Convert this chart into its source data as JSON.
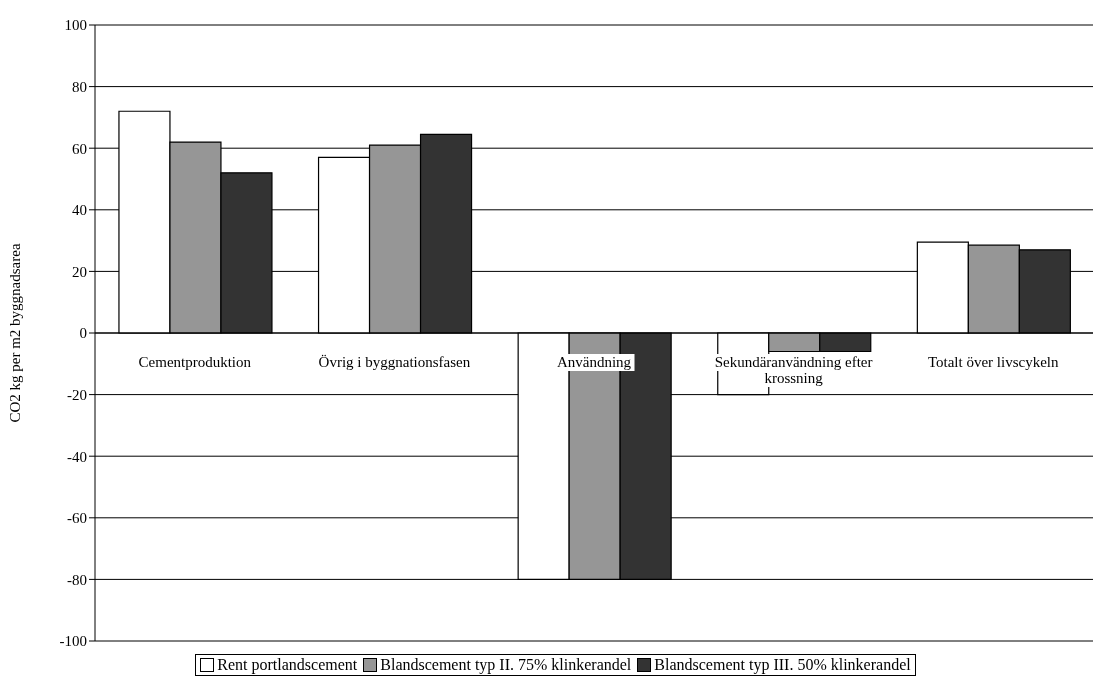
{
  "chart_data": {
    "type": "bar",
    "ylabel": "CO2 kg per m2 byggnadsarea",
    "categories": [
      "Cementproduktion",
      "Övrig i byggnationsfasen",
      "Användning",
      "Sekundäranvändning efter krossning",
      "Totalt över livscykeln"
    ],
    "series": [
      {
        "name": "Rent portlandscement",
        "color": "#ffffff",
        "values": [
          72,
          57,
          -80,
          -20,
          29.5
        ]
      },
      {
        "name": "Blandscement typ II. 75% klinkerandel",
        "color": "#969696",
        "values": [
          62,
          61,
          -80,
          -6,
          28.5
        ]
      },
      {
        "name": "Blandscement typ III. 50% klinkerandel",
        "color": "#333333",
        "values": [
          52,
          64.5,
          -80,
          -6,
          27
        ]
      }
    ],
    "ylim": [
      -100,
      100
    ],
    "yticks": [
      -100,
      -80,
      -60,
      -40,
      -20,
      0,
      20,
      40,
      60,
      80,
      100
    ],
    "grid": "y",
    "legend": "bottom"
  }
}
